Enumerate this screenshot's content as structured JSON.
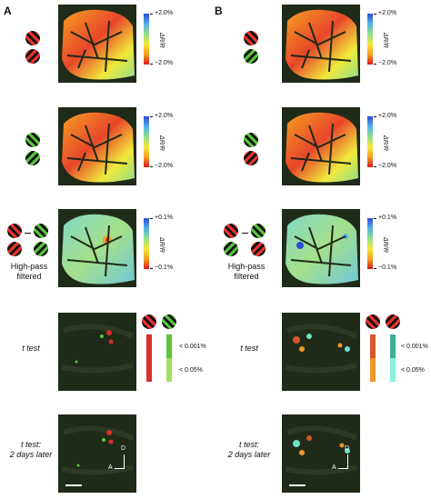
{
  "panels": {
    "a": {
      "letter": "A"
    },
    "b": {
      "letter": "B"
    }
  },
  "colorbar": {
    "axis_label": "ΔR/R",
    "rows_1_2": {
      "top": "+2.0%",
      "bottom": "−2.0%"
    },
    "row_3": {
      "top": "+0.1%",
      "bottom": "−0.1%"
    }
  },
  "row_labels": {
    "high_pass": "High-pass\nfiltered",
    "t_test": "t test",
    "t_test_later": "t test:\n2 days later"
  },
  "ttest_legend": {
    "p_strong": "< 0.001%",
    "p_weak": "< 0.05%",
    "colors_a": {
      "strong": "#d82f2a",
      "weak": "#5cc63a"
    },
    "colors_b": {
      "strong": "#d8572a",
      "weak": "#6fe0c8"
    }
  },
  "axis_marker": {
    "anterior": "A",
    "dorsal": "D"
  },
  "colors": {
    "map_background": "#1f2a18",
    "warm": "#e8462a",
    "cool": "#7fd6c8"
  },
  "icons": [
    "stimulus-red-stripes-icon",
    "stimulus-green-stripes-icon",
    "difference-minus-icon",
    "axis-arrow-icon"
  ]
}
